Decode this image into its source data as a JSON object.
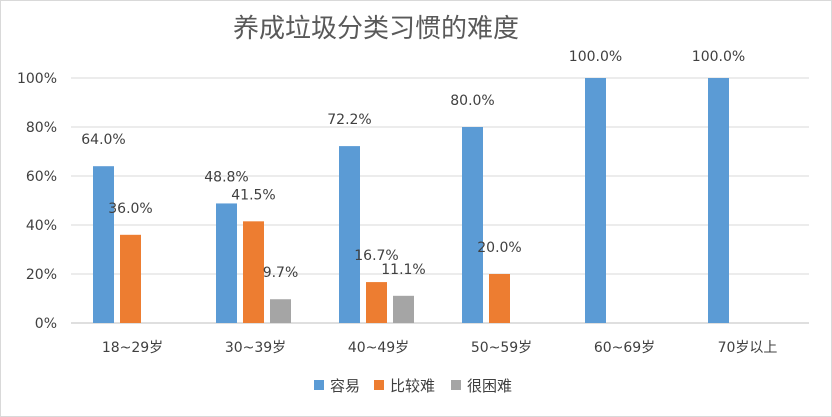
{
  "chart_data": {
    "type": "bar",
    "title": "养成垃圾分类习惯的难度",
    "categories": [
      "18~29岁",
      "30~39岁",
      "40~49岁",
      "50~59岁",
      "60~69岁",
      "70岁以上"
    ],
    "series": [
      {
        "name": "容易",
        "color": "#5b9bd5",
        "values": [
          64.0,
          48.8,
          72.2,
          80.0,
          100.0,
          100.0
        ]
      },
      {
        "name": "比较难",
        "color": "#ed7d31",
        "values": [
          36.0,
          41.5,
          16.7,
          20.0,
          null,
          null
        ]
      },
      {
        "name": "很困难",
        "color": "#a5a5a5",
        "values": [
          null,
          9.7,
          11.1,
          null,
          null,
          null
        ]
      }
    ],
    "data_labels": [
      [
        "64.0%",
        "48.8%",
        "72.2%",
        "80.0%",
        "100.0%",
        "100.0%"
      ],
      [
        "36.0%",
        "41.5%",
        "16.7%",
        "20.0%",
        "",
        ""
      ],
      [
        "",
        "9.7%",
        "11.1%",
        "",
        "",
        ""
      ]
    ],
    "y_ticks": [
      "0%",
      "20%",
      "40%",
      "60%",
      "80%",
      "100%"
    ],
    "ylim": [
      0,
      100
    ],
    "grid": true,
    "legend_position": "bottom"
  }
}
